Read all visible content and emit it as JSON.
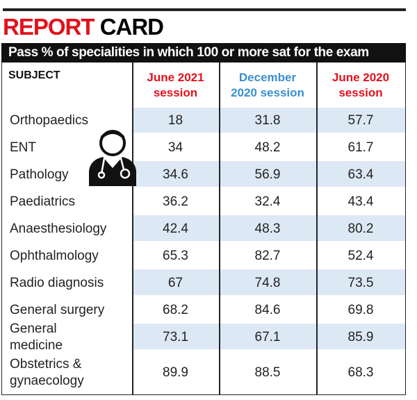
{
  "header": {
    "title_part1": "REPORT",
    "title_part2": "CARD",
    "subtitle": "Pass % of specialities in which 100 or more sat for the exam"
  },
  "table": {
    "columns": [
      "SUBJECT",
      "June 2021 session",
      "December 2020 session",
      "June 2020 session"
    ],
    "rows": [
      [
        "Orthopaedics",
        18,
        31.8,
        57.7
      ],
      [
        "ENT",
        34,
        48.2,
        61.7
      ],
      [
        "Pathology",
        34.6,
        56.9,
        63.4
      ],
      [
        "Paediatrics",
        36.2,
        32.4,
        43.4
      ],
      [
        "Anaesthesiology",
        42.4,
        48.3,
        80.2
      ],
      [
        "Ophthalmology",
        65.3,
        82.7,
        52.4
      ],
      [
        "Radio diagnosis",
        67,
        74.8,
        73.5
      ],
      [
        "General surgery",
        68.2,
        84.6,
        69.8
      ],
      [
        "General medicine",
        73.1,
        67.1,
        85.9
      ],
      [
        "Obstetrics & gynaecology",
        89.9,
        88.5,
        68.3
      ]
    ]
  }
}
